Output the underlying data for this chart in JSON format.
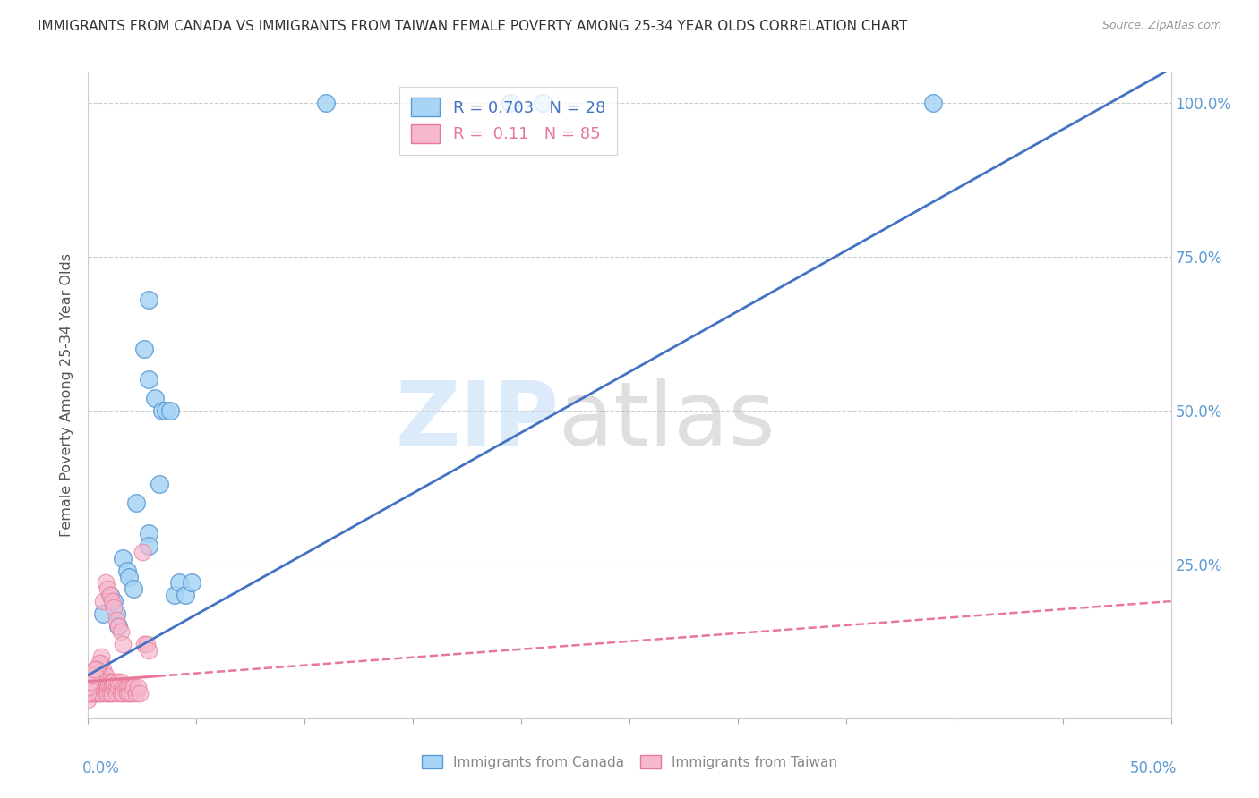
{
  "title": "IMMIGRANTS FROM CANADA VS IMMIGRANTS FROM TAIWAN FEMALE POVERTY AMONG 25-34 YEAR OLDS CORRELATION CHART",
  "source": "Source: ZipAtlas.com",
  "ylabel": "Female Poverty Among 25-34 Year Olds",
  "xlim": [
    0.0,
    0.5
  ],
  "ylim": [
    0.0,
    1.05
  ],
  "canada_scatter": [
    [
      0.11,
      1.0
    ],
    [
      0.195,
      1.0
    ],
    [
      0.21,
      1.0
    ],
    [
      0.39,
      1.0
    ],
    [
      0.028,
      0.68
    ],
    [
      0.026,
      0.6
    ],
    [
      0.028,
      0.55
    ],
    [
      0.031,
      0.52
    ],
    [
      0.034,
      0.5
    ],
    [
      0.036,
      0.5
    ],
    [
      0.038,
      0.5
    ],
    [
      0.033,
      0.38
    ],
    [
      0.022,
      0.35
    ],
    [
      0.028,
      0.3
    ],
    [
      0.028,
      0.28
    ],
    [
      0.016,
      0.26
    ],
    [
      0.018,
      0.24
    ],
    [
      0.019,
      0.23
    ],
    [
      0.021,
      0.21
    ],
    [
      0.01,
      0.2
    ],
    [
      0.012,
      0.19
    ],
    [
      0.013,
      0.17
    ],
    [
      0.014,
      0.15
    ],
    [
      0.04,
      0.2
    ],
    [
      0.042,
      0.22
    ],
    [
      0.045,
      0.2
    ],
    [
      0.048,
      0.22
    ],
    [
      0.007,
      0.17
    ]
  ],
  "taiwan_scatter": [
    [
      0.0,
      0.03
    ],
    [
      0.001,
      0.05
    ],
    [
      0.001,
      0.04
    ],
    [
      0.001,
      0.06
    ],
    [
      0.002,
      0.04
    ],
    [
      0.002,
      0.06
    ],
    [
      0.002,
      0.05
    ],
    [
      0.002,
      0.07
    ],
    [
      0.003,
      0.05
    ],
    [
      0.003,
      0.07
    ],
    [
      0.003,
      0.04
    ],
    [
      0.003,
      0.06
    ],
    [
      0.003,
      0.08
    ],
    [
      0.004,
      0.05
    ],
    [
      0.004,
      0.07
    ],
    [
      0.004,
      0.06
    ],
    [
      0.004,
      0.04
    ],
    [
      0.005,
      0.06
    ],
    [
      0.005,
      0.08
    ],
    [
      0.005,
      0.05
    ],
    [
      0.005,
      0.04
    ],
    [
      0.006,
      0.07
    ],
    [
      0.006,
      0.05
    ],
    [
      0.006,
      0.04
    ],
    [
      0.006,
      0.09
    ],
    [
      0.007,
      0.06
    ],
    [
      0.007,
      0.05
    ],
    [
      0.007,
      0.08
    ],
    [
      0.008,
      0.07
    ],
    [
      0.008,
      0.05
    ],
    [
      0.008,
      0.04
    ],
    [
      0.009,
      0.06
    ],
    [
      0.009,
      0.05
    ],
    [
      0.009,
      0.04
    ],
    [
      0.01,
      0.05
    ],
    [
      0.01,
      0.04
    ],
    [
      0.011,
      0.06
    ],
    [
      0.011,
      0.05
    ],
    [
      0.011,
      0.04
    ],
    [
      0.012,
      0.05
    ],
    [
      0.012,
      0.06
    ],
    [
      0.013,
      0.05
    ],
    [
      0.013,
      0.04
    ],
    [
      0.014,
      0.05
    ],
    [
      0.014,
      0.06
    ],
    [
      0.015,
      0.04
    ],
    [
      0.015,
      0.06
    ],
    [
      0.016,
      0.05
    ],
    [
      0.016,
      0.04
    ],
    [
      0.017,
      0.05
    ],
    [
      0.018,
      0.05
    ],
    [
      0.018,
      0.04
    ],
    [
      0.019,
      0.05
    ],
    [
      0.019,
      0.04
    ],
    [
      0.02,
      0.05
    ],
    [
      0.02,
      0.04
    ],
    [
      0.021,
      0.05
    ],
    [
      0.022,
      0.04
    ],
    [
      0.023,
      0.05
    ],
    [
      0.024,
      0.04
    ],
    [
      0.007,
      0.19
    ],
    [
      0.008,
      0.22
    ],
    [
      0.009,
      0.21
    ],
    [
      0.01,
      0.2
    ],
    [
      0.011,
      0.19
    ],
    [
      0.012,
      0.18
    ],
    [
      0.013,
      0.16
    ],
    [
      0.014,
      0.15
    ],
    [
      0.025,
      0.27
    ],
    [
      0.015,
      0.14
    ],
    [
      0.016,
      0.12
    ],
    [
      0.006,
      0.1
    ],
    [
      0.005,
      0.09
    ],
    [
      0.004,
      0.08
    ],
    [
      0.003,
      0.07
    ],
    [
      0.002,
      0.06
    ],
    [
      0.001,
      0.05
    ],
    [
      0.0,
      0.04
    ],
    [
      0.0,
      0.05
    ],
    [
      0.001,
      0.06
    ],
    [
      0.002,
      0.07
    ],
    [
      0.003,
      0.08
    ],
    [
      0.026,
      0.12
    ],
    [
      0.027,
      0.12
    ],
    [
      0.028,
      0.11
    ]
  ],
  "canada_color": "#a8d4f5",
  "taiwan_color": "#f5b8cc",
  "canada_edge_color": "#5b9bd5",
  "taiwan_edge_color": "#e87898",
  "canada_line_color": "#4472c4",
  "taiwan_line_color": "#e87898",
  "canada_trend": [
    0.0,
    0.07,
    1.97
  ],
  "taiwan_trend_solid_end": 0.032,
  "background_color": "#ffffff",
  "grid_color": "#cccccc",
  "right_axis_color": "#5b9bd5",
  "title_color": "#333333",
  "source_color": "#999999",
  "legend_box_color_canada": "#a8d4f5",
  "legend_box_color_taiwan": "#f5b8cc",
  "canada_R": 0.703,
  "canada_N": 28,
  "taiwan_R": 0.11,
  "taiwan_N": 85,
  "watermark_zip_color": "#c5dff5",
  "watermark_atlas_color": "#c0c0c0"
}
